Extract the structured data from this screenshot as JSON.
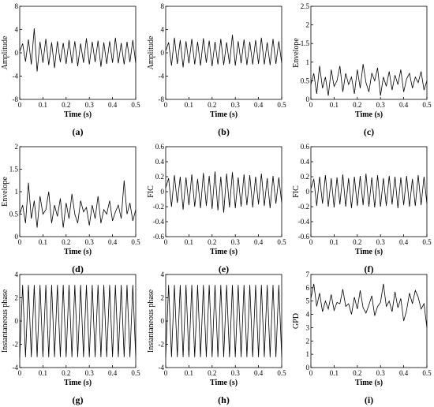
{
  "chart_data": [
    {
      "id": "a",
      "type": "line",
      "panel_label": "(a)",
      "xlabel": "Time (s)",
      "ylabel": "Amplitude",
      "xlim": [
        0,
        0.5
      ],
      "ylim": [
        -8,
        8
      ],
      "xticks": [
        0,
        0.1,
        0.2,
        0.3,
        0.4,
        0.5
      ],
      "yticks": [
        -8,
        -4,
        0,
        4,
        8
      ],
      "x": [
        0.0,
        0.0125,
        0.025,
        0.0375,
        0.05,
        0.0625,
        0.075,
        0.0875,
        0.1,
        0.1125,
        0.125,
        0.1375,
        0.15,
        0.1625,
        0.175,
        0.1875,
        0.2,
        0.2125,
        0.225,
        0.2375,
        0.25,
        0.2625,
        0.275,
        0.2875,
        0.3,
        0.3125,
        0.325,
        0.3375,
        0.35,
        0.3625,
        0.375,
        0.3875,
        0.4,
        0.4125,
        0.425,
        0.4375,
        0.45,
        0.4625,
        0.475,
        0.4875,
        0.5
      ],
      "y": [
        0.2,
        1.6,
        -1.5,
        2.3,
        -2.0,
        4.2,
        -3.2,
        1.9,
        -1.7,
        2.4,
        -2.1,
        1.8,
        -2.6,
        2.0,
        -1.6,
        1.7,
        -1.9,
        2.2,
        -1.8,
        2.0,
        -2.3,
        1.6,
        -1.7,
        2.5,
        -2.0,
        1.9,
        -1.6,
        2.1,
        -2.4,
        1.8,
        -1.9,
        2.0,
        -1.7,
        2.6,
        -1.8,
        1.7,
        -2.0,
        1.9,
        -1.6,
        2.2,
        -1.8
      ]
    },
    {
      "id": "b",
      "type": "line",
      "panel_label": "(b)",
      "xlabel": "Time (s)",
      "ylabel": "Amplitude",
      "xlim": [
        0,
        0.5
      ],
      "ylim": [
        -8,
        8
      ],
      "xticks": [
        0,
        0.1,
        0.2,
        0.3,
        0.4,
        0.5
      ],
      "yticks": [
        -8,
        -4,
        0,
        4,
        8
      ],
      "x": [
        0.0,
        0.0125,
        0.025,
        0.0375,
        0.05,
        0.0625,
        0.075,
        0.0875,
        0.1,
        0.1125,
        0.125,
        0.1375,
        0.15,
        0.1625,
        0.175,
        0.1875,
        0.2,
        0.2125,
        0.225,
        0.2375,
        0.25,
        0.2625,
        0.275,
        0.2875,
        0.3,
        0.3125,
        0.325,
        0.3375,
        0.35,
        0.3625,
        0.375,
        0.3875,
        0.4,
        0.4125,
        0.425,
        0.4375,
        0.45,
        0.4625,
        0.475,
        0.4875,
        0.5
      ],
      "y": [
        0.3,
        1.8,
        -2.2,
        2.6,
        -1.9,
        2.2,
        -2.5,
        2.0,
        -1.8,
        2.4,
        -2.0,
        1.9,
        -2.2,
        2.5,
        -1.7,
        2.1,
        -2.3,
        1.9,
        -2.0,
        2.4,
        -2.1,
        1.8,
        -1.9,
        3.1,
        -2.2,
        2.0,
        -1.8,
        2.3,
        -2.1,
        1.9,
        -2.0,
        2.2,
        -1.9,
        2.6,
        -2.0,
        1.8,
        -2.1,
        2.4,
        -1.9,
        2.0,
        -1.8
      ]
    },
    {
      "id": "c",
      "type": "line",
      "panel_label": "(c)",
      "xlabel": "Time (s)",
      "ylabel": "Envelope",
      "xlim": [
        0,
        0.5
      ],
      "ylim": [
        0,
        2.5
      ],
      "xticks": [
        0,
        0.1,
        0.2,
        0.3,
        0.4,
        0.5
      ],
      "yticks": [
        0,
        0.5,
        1,
        1.5,
        2,
        2.5
      ],
      "x": [
        0.0,
        0.0125,
        0.025,
        0.0375,
        0.05,
        0.0625,
        0.075,
        0.0875,
        0.1,
        0.1125,
        0.125,
        0.1375,
        0.15,
        0.1625,
        0.175,
        0.1875,
        0.2,
        0.2125,
        0.225,
        0.2375,
        0.25,
        0.2625,
        0.275,
        0.2875,
        0.3,
        0.3125,
        0.325,
        0.3375,
        0.35,
        0.3625,
        0.375,
        0.3875,
        0.4,
        0.4125,
        0.425,
        0.4375,
        0.45,
        0.4625,
        0.475,
        0.4875,
        0.5
      ],
      "y": [
        0.4,
        0.7,
        0.15,
        0.9,
        0.3,
        0.6,
        0.1,
        0.8,
        0.35,
        0.5,
        0.9,
        0.2,
        0.7,
        0.4,
        0.6,
        0.15,
        0.8,
        0.3,
        0.95,
        0.45,
        0.2,
        0.7,
        0.5,
        0.85,
        0.1,
        0.6,
        0.35,
        0.75,
        0.25,
        0.65,
        0.4,
        0.8,
        0.2,
        0.55,
        0.7,
        0.3,
        0.6,
        0.45,
        0.75,
        0.25,
        0.5
      ]
    },
    {
      "id": "d",
      "type": "line",
      "panel_label": "(d)",
      "xlabel": "Time (s)",
      "ylabel": "Envelope",
      "xlim": [
        0,
        0.5
      ],
      "ylim": [
        0,
        2
      ],
      "xticks": [
        0,
        0.1,
        0.2,
        0.3,
        0.4,
        0.5
      ],
      "yticks": [
        0,
        0.5,
        1,
        1.5,
        2
      ],
      "x": [
        0.0,
        0.0125,
        0.025,
        0.0375,
        0.05,
        0.0625,
        0.075,
        0.0875,
        0.1,
        0.1125,
        0.125,
        0.1375,
        0.15,
        0.1625,
        0.175,
        0.1875,
        0.2,
        0.2125,
        0.225,
        0.2375,
        0.25,
        0.2625,
        0.275,
        0.2875,
        0.3,
        0.3125,
        0.325,
        0.3375,
        0.35,
        0.3625,
        0.375,
        0.3875,
        0.4,
        0.4125,
        0.425,
        0.4375,
        0.45,
        0.4625,
        0.475,
        0.4875,
        0.5
      ],
      "y": [
        0.5,
        0.7,
        0.3,
        1.2,
        0.4,
        0.8,
        0.2,
        0.9,
        0.5,
        0.6,
        1.0,
        0.3,
        0.7,
        0.45,
        0.85,
        0.2,
        0.75,
        0.4,
        0.95,
        0.5,
        0.3,
        0.8,
        0.55,
        0.65,
        0.25,
        0.7,
        0.4,
        0.9,
        0.3,
        0.6,
        0.5,
        0.8,
        0.35,
        0.55,
        0.7,
        0.4,
        1.25,
        0.5,
        0.75,
        0.35,
        0.6
      ]
    },
    {
      "id": "e",
      "type": "line",
      "panel_label": "(e)",
      "xlabel": "Time (s)",
      "ylabel": "FIC",
      "xlim": [
        0,
        0.5
      ],
      "ylim": [
        -0.6,
        0.6
      ],
      "xticks": [
        0,
        0.1,
        0.2,
        0.3,
        0.4,
        0.5
      ],
      "yticks": [
        -0.6,
        -0.4,
        -0.2,
        0,
        0.2,
        0.4,
        0.6
      ],
      "x": [
        0.0,
        0.0125,
        0.025,
        0.0375,
        0.05,
        0.0625,
        0.075,
        0.0875,
        0.1,
        0.1125,
        0.125,
        0.1375,
        0.15,
        0.1625,
        0.175,
        0.1875,
        0.2,
        0.2125,
        0.225,
        0.2375,
        0.25,
        0.2625,
        0.275,
        0.2875,
        0.3,
        0.3125,
        0.325,
        0.3375,
        0.35,
        0.3625,
        0.375,
        0.3875,
        0.4,
        0.4125,
        0.425,
        0.4375,
        0.45,
        0.4625,
        0.475,
        0.4875,
        0.5
      ],
      "y": [
        0.05,
        0.18,
        -0.2,
        0.22,
        -0.15,
        0.2,
        -0.24,
        0.19,
        -0.18,
        0.23,
        -0.2,
        0.17,
        -0.22,
        0.25,
        -0.19,
        0.21,
        -0.23,
        0.27,
        -0.25,
        0.2,
        -0.28,
        0.24,
        -0.21,
        0.26,
        -0.22,
        0.19,
        -0.2,
        0.23,
        -0.18,
        0.22,
        -0.21,
        0.2,
        -0.17,
        0.24,
        -0.19,
        0.18,
        -0.22,
        0.21,
        -0.16,
        0.19,
        -0.15
      ]
    },
    {
      "id": "f",
      "type": "line",
      "panel_label": "(f)",
      "xlabel": "Time (s)",
      "ylabel": "FIC",
      "xlim": [
        0,
        0.5
      ],
      "ylim": [
        -0.6,
        0.6
      ],
      "xticks": [
        0,
        0.1,
        0.2,
        0.3,
        0.4,
        0.5
      ],
      "yticks": [
        -0.6,
        -0.4,
        -0.2,
        0,
        0.2,
        0.4,
        0.6
      ],
      "x": [
        0.0,
        0.0125,
        0.025,
        0.0375,
        0.05,
        0.0625,
        0.075,
        0.0875,
        0.1,
        0.1125,
        0.125,
        0.1375,
        0.15,
        0.1625,
        0.175,
        0.1875,
        0.2,
        0.2125,
        0.225,
        0.2375,
        0.25,
        0.2625,
        0.275,
        0.2875,
        0.3,
        0.3125,
        0.325,
        0.3375,
        0.35,
        0.3625,
        0.375,
        0.3875,
        0.4,
        0.4125,
        0.425,
        0.4375,
        0.45,
        0.4625,
        0.475,
        0.4875,
        0.5
      ],
      "y": [
        0.04,
        0.17,
        -0.19,
        0.2,
        -0.16,
        0.22,
        -0.2,
        0.18,
        -0.21,
        0.19,
        -0.17,
        0.23,
        -0.2,
        0.18,
        -0.22,
        0.2,
        -0.19,
        0.21,
        -0.18,
        0.24,
        -0.2,
        0.19,
        -0.21,
        0.22,
        -0.2,
        0.18,
        -0.19,
        0.21,
        -0.17,
        0.2,
        -0.22,
        0.19,
        -0.18,
        0.21,
        -0.2,
        0.17,
        -0.19,
        0.22,
        -0.18,
        0.2,
        -0.16
      ]
    },
    {
      "id": "g",
      "type": "line",
      "panel_label": "(g)",
      "xlabel": "Time (s)",
      "ylabel": "Instantaneous phase",
      "xlim": [
        0,
        0.5
      ],
      "ylim": [
        -4,
        4
      ],
      "xticks": [
        0,
        0.1,
        0.2,
        0.3,
        0.4,
        0.5
      ],
      "yticks": [
        -4,
        -2,
        0,
        2,
        4
      ],
      "x": [
        0.0,
        0.0125,
        0.025,
        0.0375,
        0.05,
        0.0625,
        0.075,
        0.0875,
        0.1,
        0.1125,
        0.125,
        0.1375,
        0.15,
        0.1625,
        0.175,
        0.1875,
        0.2,
        0.2125,
        0.225,
        0.2375,
        0.25,
        0.2625,
        0.275,
        0.2875,
        0.3,
        0.3125,
        0.325,
        0.3375,
        0.35,
        0.3625,
        0.375,
        0.3875,
        0.4,
        0.4125,
        0.425,
        0.4375,
        0.45,
        0.4625,
        0.475,
        0.4875,
        0.5
      ],
      "y": [
        -3.1,
        3.1,
        -3.1,
        3.1,
        -3.1,
        3.1,
        -3.1,
        3.1,
        -3.1,
        3.1,
        -3.1,
        3.1,
        -3.1,
        3.1,
        -3.1,
        3.1,
        -3.1,
        3.1,
        -3.1,
        3.1,
        -3.1,
        3.1,
        -3.1,
        3.1,
        -3.1,
        3.1,
        -3.1,
        3.1,
        -3.1,
        3.1,
        -3.1,
        3.1,
        -3.1,
        3.1,
        -3.1,
        3.1,
        -3.1,
        3.1,
        -3.1,
        3.1,
        -3.1
      ]
    },
    {
      "id": "h",
      "type": "line",
      "panel_label": "(h)",
      "xlabel": "Time (s)",
      "ylabel": "Instantaneous phase",
      "xlim": [
        0,
        0.5
      ],
      "ylim": [
        -4,
        4
      ],
      "xticks": [
        0,
        0.1,
        0.2,
        0.3,
        0.4,
        0.5
      ],
      "yticks": [
        -4,
        -2,
        0,
        2,
        4
      ],
      "x": [
        0.0,
        0.0125,
        0.025,
        0.0375,
        0.05,
        0.0625,
        0.075,
        0.0875,
        0.1,
        0.1125,
        0.125,
        0.1375,
        0.15,
        0.1625,
        0.175,
        0.1875,
        0.2,
        0.2125,
        0.225,
        0.2375,
        0.25,
        0.2625,
        0.275,
        0.2875,
        0.3,
        0.3125,
        0.325,
        0.3375,
        0.35,
        0.3625,
        0.375,
        0.3875,
        0.4,
        0.4125,
        0.425,
        0.4375,
        0.45,
        0.4625,
        0.475,
        0.4875,
        0.5
      ],
      "y": [
        -3.1,
        3.1,
        -3.1,
        3.1,
        -3.1,
        3.1,
        -3.1,
        3.1,
        -3.1,
        3.1,
        -3.1,
        3.1,
        -3.1,
        3.1,
        -3.1,
        3.1,
        -3.1,
        3.1,
        -3.1,
        3.1,
        -3.1,
        3.1,
        -3.1,
        3.1,
        -3.1,
        3.1,
        -3.1,
        3.1,
        -3.1,
        3.1,
        -3.1,
        3.1,
        -3.1,
        3.1,
        -3.1,
        3.1,
        -3.1,
        3.1,
        -3.1,
        3.1,
        -3.1
      ]
    },
    {
      "id": "i",
      "type": "line",
      "panel_label": "(i)",
      "xlabel": "Time (s)",
      "ylabel": "GPD",
      "xlim": [
        0,
        0.5
      ],
      "ylim": [
        0,
        7
      ],
      "xticks": [
        0,
        0.1,
        0.2,
        0.3,
        0.4,
        0.5
      ],
      "yticks": [
        0,
        1,
        2,
        3,
        4,
        5,
        6,
        7
      ],
      "x": [
        0.0,
        0.0125,
        0.025,
        0.0375,
        0.05,
        0.0625,
        0.075,
        0.0875,
        0.1,
        0.1125,
        0.125,
        0.1375,
        0.15,
        0.1625,
        0.175,
        0.1875,
        0.2,
        0.2125,
        0.225,
        0.2375,
        0.25,
        0.2625,
        0.275,
        0.2875,
        0.3,
        0.3125,
        0.325,
        0.3375,
        0.35,
        0.3625,
        0.375,
        0.3875,
        0.4,
        0.4125,
        0.425,
        0.4375,
        0.45,
        0.4625,
        0.475,
        0.4875,
        0.5
      ],
      "y": [
        5.2,
        6.3,
        4.6,
        5.6,
        4.2,
        5.0,
        4.4,
        5.5,
        4.3,
        4.9,
        4.8,
        5.9,
        4.6,
        4.8,
        4.0,
        5.3,
        4.4,
        5.8,
        4.5,
        4.1,
        4.7,
        5.4,
        3.9,
        4.6,
        4.9,
        6.3,
        4.6,
        5.0,
        4.2,
        5.7,
        4.5,
        5.2,
        3.5,
        4.3,
        5.6,
        4.8,
        5.8,
        5.3,
        4.4,
        4.8,
        3.0
      ]
    }
  ]
}
